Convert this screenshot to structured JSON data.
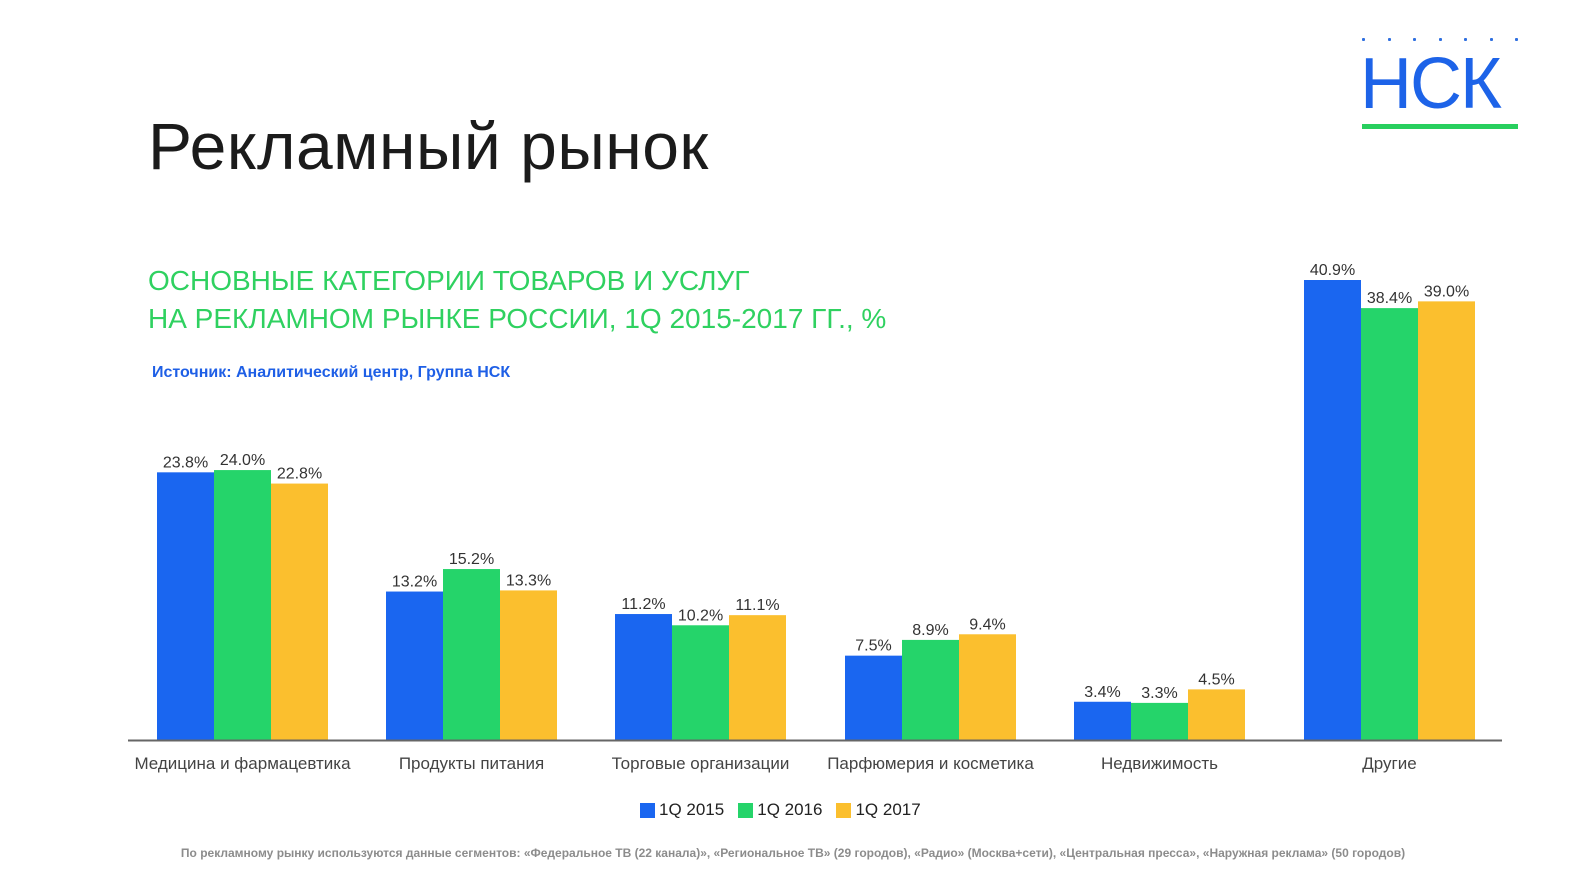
{
  "page": {
    "title": "Рекламный рынок",
    "subtitle_line1": "ОСНОВНЫЕ КАТЕГОРИИ ТОВАРОВ И УСЛУГ",
    "subtitle_line2": "НА РЕКЛАМНОМ РЫНКЕ РОССИИ, 1Q 2015-2017 ГГ., %",
    "source": "Источник: Аналитический центр, Группа НСК",
    "footnote": "По рекламному рынку используются данные сегментов: «Федеральное ТВ (22 канала)», «Региональное ТВ» (29 городов), «Радио» (Москва+сети), «Центральная пресса», «Наружная реклама» (50 городов)"
  },
  "logo": {
    "text": "НСК",
    "color": "#1d63e8",
    "underline_color": "#28cf5e"
  },
  "colors": {
    "accent_green": "#2fd160",
    "source_blue": "#1e5fe6"
  },
  "chart_data": {
    "type": "bar",
    "categories": [
      "Медицина и фармацевтика",
      "Продукты питания",
      "Торговые организации",
      "Парфюмерия и косметика",
      "Недвижимость",
      "Другие"
    ],
    "series": [
      {
        "name": "1Q 2015",
        "color": "#1a66f0",
        "values": [
          23.8,
          13.2,
          11.2,
          7.5,
          3.4,
          40.9
        ],
        "labels": [
          "23.8%",
          "13.2%",
          "11.2%",
          "7.5%",
          "3.4%",
          "40.9%"
        ]
      },
      {
        "name": "1Q 2016",
        "color": "#25d46a",
        "values": [
          24.0,
          15.2,
          10.2,
          8.9,
          3.3,
          38.4
        ],
        "labels": [
          "24.0%",
          "15.2%",
          "10.2%",
          "8.9%",
          "3.3%",
          "38.4%"
        ]
      },
      {
        "name": "1Q 2017",
        "color": "#fbbf2e",
        "values": [
          22.8,
          13.3,
          11.1,
          9.4,
          4.5,
          39.0
        ],
        "labels": [
          "22.8%",
          "13.3%",
          "11.1%",
          "9.4%",
          "4.5%",
          "39.0%"
        ]
      }
    ],
    "ylim": [
      0,
      40.9
    ],
    "grid": false,
    "legend_position": "bottom-center"
  }
}
